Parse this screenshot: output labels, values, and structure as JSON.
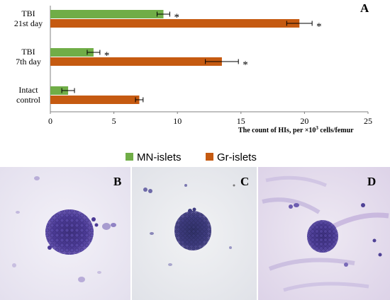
{
  "chart_data": {
    "type": "bar",
    "orientation": "horizontal",
    "panel_label": "A",
    "categories": [
      [
        "TBI",
        "21st day"
      ],
      [
        "TBI",
        "7th day"
      ],
      [
        "Intact",
        "control"
      ]
    ],
    "series": [
      {
        "name": "MN-islets",
        "color": "#70ad47",
        "values": [
          8.9,
          3.4,
          1.4
        ],
        "errors": [
          0.5,
          0.5,
          0.5
        ],
        "significance": [
          "*",
          "*",
          ""
        ]
      },
      {
        "name": "Gr-islets",
        "color": "#c55a11",
        "values": [
          19.6,
          13.5,
          7.0
        ],
        "errors": [
          1.0,
          1.3,
          0.3
        ],
        "significance": [
          "*",
          "*",
          ""
        ]
      }
    ],
    "x_ticks": [
      0,
      5,
      10,
      15,
      20,
      25
    ],
    "xlim": [
      0,
      25
    ],
    "xlabel_prefix": "The count of HIs, per ×10",
    "xlabel_sup": "3",
    "xlabel_suffix": " cells/femur",
    "legend_position": "bottom"
  },
  "micrographs": [
    {
      "label": "B"
    },
    {
      "label": "C"
    },
    {
      "label": "D"
    }
  ]
}
